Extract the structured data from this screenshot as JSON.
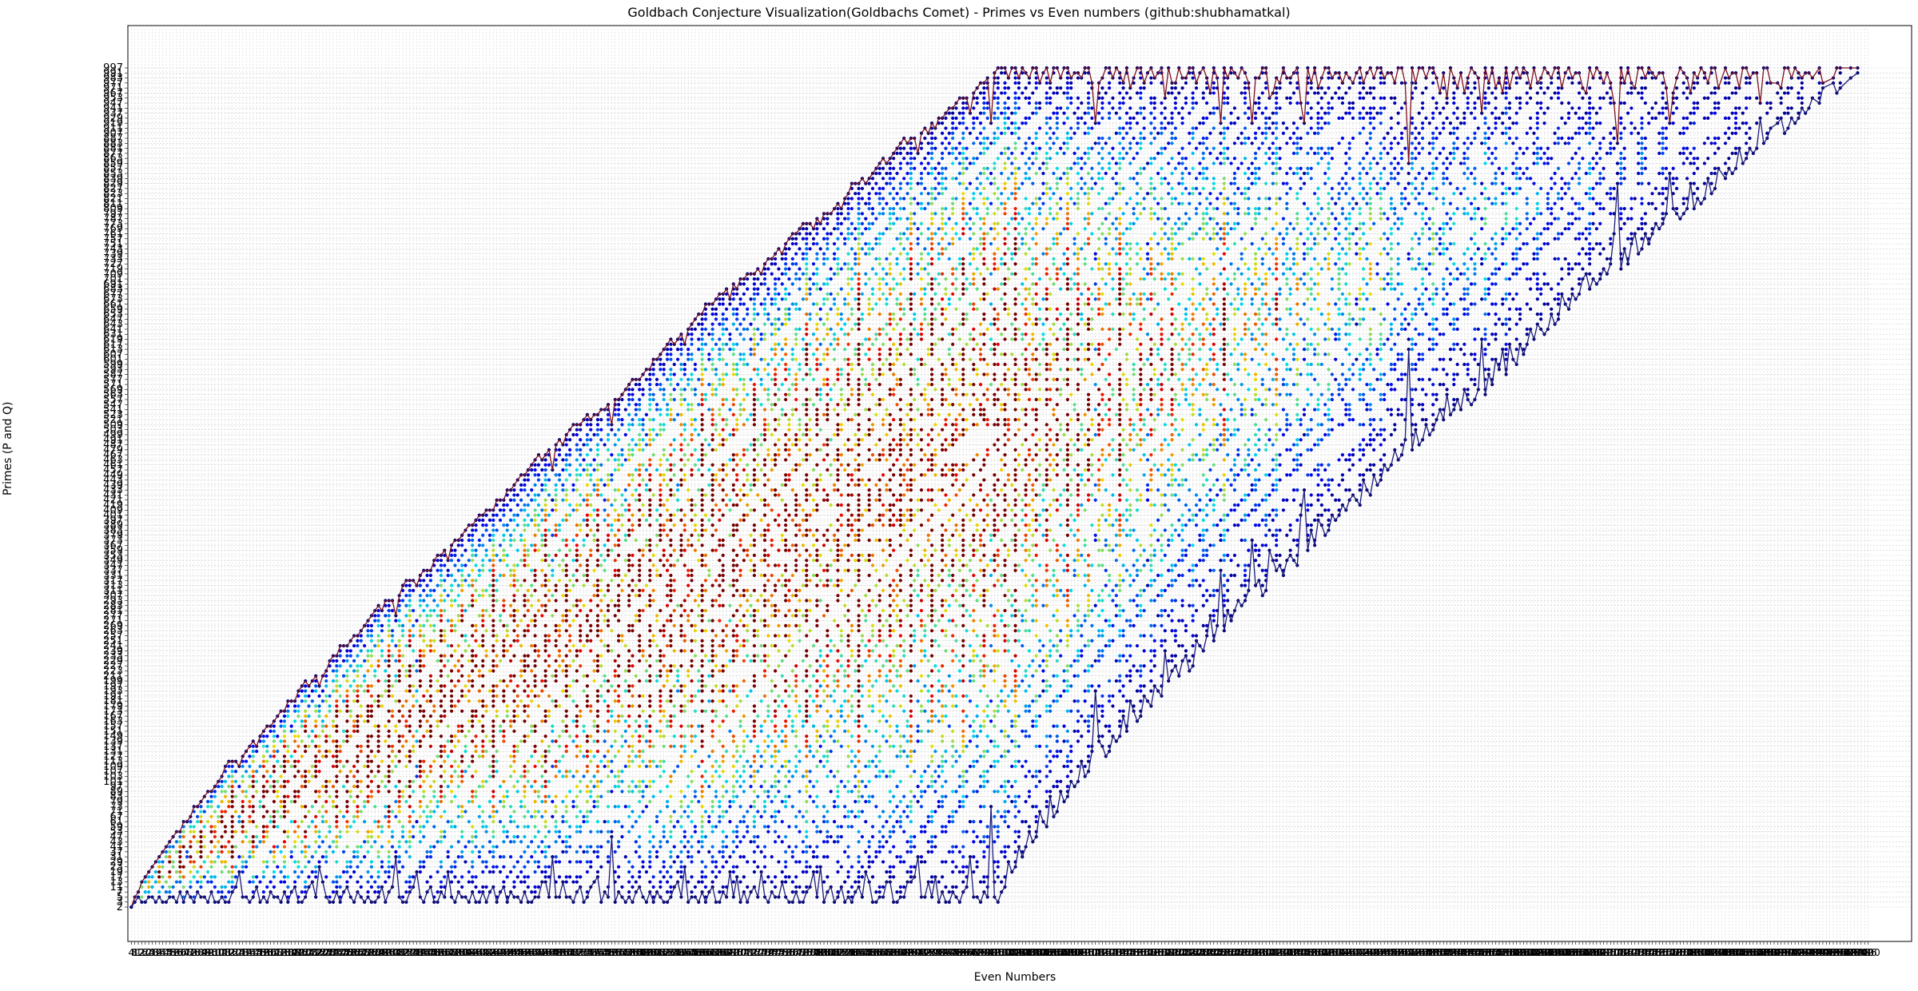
{
  "chart_data": {
    "type": "scatter",
    "title": "Goldbach Conjecture Visualization(Goldbachs Comet) - Primes vs Even numbers    (github:shubhamatkal)",
    "xlabel": "Even Numbers",
    "ylabel": "Primes (P and Q)",
    "x_range": [
      4,
      2000
    ],
    "x_step": 4,
    "y_range": [
      2,
      997
    ],
    "y_axis": "categorical primes (each prime is an evenly spaced tick)",
    "grid": true,
    "legend": "none",
    "series": [
      {
        "name": "",
        "description": "Goldbach partition primes P and Q for each even number, colored by partition count",
        "colormap": "jet"
      },
      {
        "name": "",
        "description": "largest prime P per even number",
        "color": "#8b1a1a"
      },
      {
        "name": "",
        "description": "smallest prime Q per even number",
        "color": "#1a1a8b"
      }
    ],
    "colors": {
      "upper_line": "#7a1020",
      "lower_line": "#1c1c7a",
      "grid": "#cccccc"
    }
  }
}
